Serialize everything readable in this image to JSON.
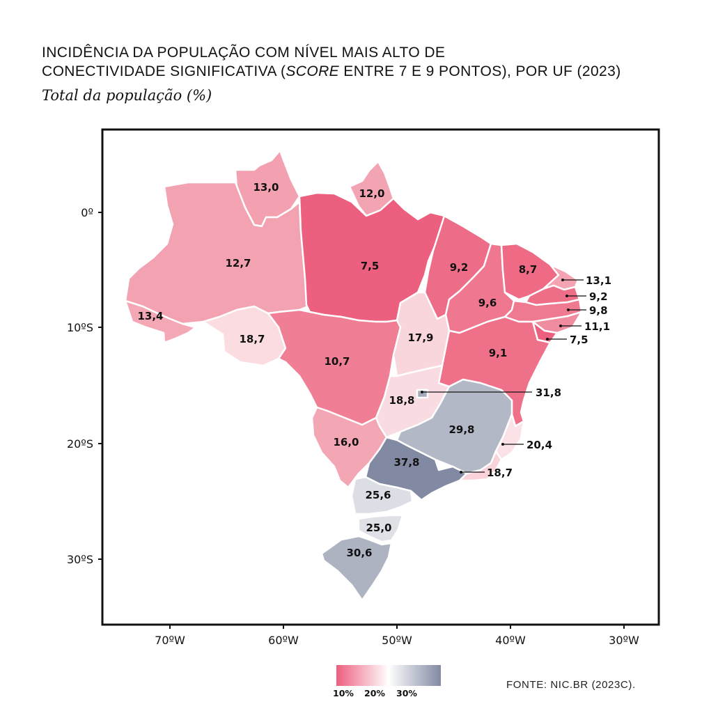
{
  "title": {
    "line1": "INCIDÊNCIA DA POPULAÇÃO COM NÍVEL MAIS ALTO DE",
    "line2_pre": "CONECTIVIDADE SIGNIFICATIVA (",
    "line2_em": "SCORE",
    "line2_post": " ENTRE 7 E 9 PONTOS), POR UF (2023)"
  },
  "subtitle": "Total da população (%)",
  "axes": {
    "latitude_labels": [
      "0º",
      "10ºS",
      "20ºS",
      "30ºS"
    ],
    "longitude_labels": [
      "70ºW",
      "60ºW",
      "50ºW",
      "40ºW",
      "30ºW"
    ]
  },
  "legend": {
    "tick_labels": [
      "10%",
      "20%",
      "30%"
    ],
    "color_low": "#ec5f7e",
    "color_mid": "#ffffff",
    "color_high": "#828aa3"
  },
  "source": "FONTE: NIC.BR (2023C).",
  "states": [
    {
      "id": "RR",
      "value": "13,0"
    },
    {
      "id": "AP",
      "value": "12,0"
    },
    {
      "id": "AM",
      "value": "12,7"
    },
    {
      "id": "PA",
      "value": "7,5"
    },
    {
      "id": "MA",
      "value": "9,2"
    },
    {
      "id": "CE",
      "value": "8,7"
    },
    {
      "id": "RN",
      "value": "13,1"
    },
    {
      "id": "PB",
      "value": "9,2"
    },
    {
      "id": "PE",
      "value": "9,8"
    },
    {
      "id": "AL",
      "value": "11,1"
    },
    {
      "id": "SE",
      "value": "7,5"
    },
    {
      "id": "PI",
      "value": "9,6"
    },
    {
      "id": "AC",
      "value": "13,4"
    },
    {
      "id": "RO",
      "value": "18,7"
    },
    {
      "id": "MT",
      "value": "10,7"
    },
    {
      "id": "TO",
      "value": "17,9"
    },
    {
      "id": "BA",
      "value": "9,1"
    },
    {
      "id": "DF",
      "value": "31,8"
    },
    {
      "id": "GO",
      "value": "18,8"
    },
    {
      "id": "MG",
      "value": "29,8"
    },
    {
      "id": "ES",
      "value": "20,4"
    },
    {
      "id": "MS",
      "value": "16,0"
    },
    {
      "id": "SP",
      "value": "37,8"
    },
    {
      "id": "RJ",
      "value": "18,7"
    },
    {
      "id": "PR",
      "value": "25,6"
    },
    {
      "id": "SC",
      "value": "25,0"
    },
    {
      "id": "RS",
      "value": "30,6"
    }
  ]
}
